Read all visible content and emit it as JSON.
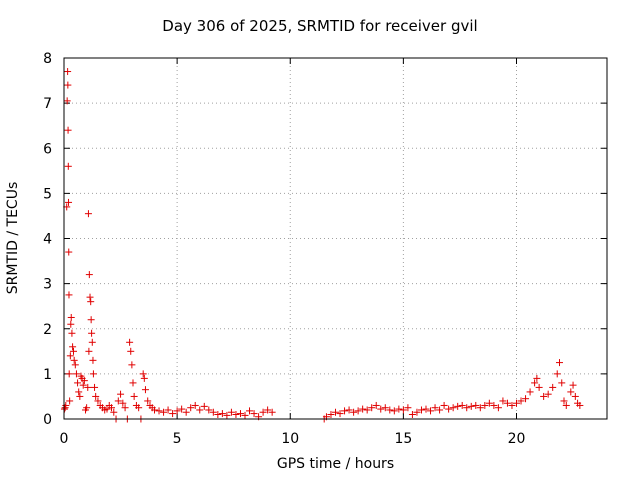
{
  "chart_data": {
    "type": "scatter",
    "title": "Day 306 of 2025, SRMTID for receiver gvil",
    "xlabel": "GPS time / hours",
    "ylabel": "SRMTID / TECUs",
    "xlim": [
      0,
      24
    ],
    "ylim": [
      0,
      8
    ],
    "x_ticks": [
      0,
      5,
      10,
      15,
      20
    ],
    "y_ticks": [
      0,
      1,
      2,
      3,
      4,
      5,
      6,
      7,
      8
    ],
    "grid": true,
    "legend": "none",
    "marker": "+",
    "color": "#e00000",
    "series": [
      {
        "points": [
          [
            0.02,
            0.22
          ],
          [
            0.05,
            0.25
          ],
          [
            0.08,
            0.3
          ],
          [
            0.12,
            4.7
          ],
          [
            0.14,
            7.05
          ],
          [
            0.16,
            7.7
          ],
          [
            0.17,
            7.4
          ],
          [
            0.18,
            6.4
          ],
          [
            0.19,
            5.6
          ],
          [
            0.2,
            4.8
          ],
          [
            0.21,
            3.7
          ],
          [
            0.22,
            2.75
          ],
          [
            0.23,
            1.0
          ],
          [
            0.25,
            0.4
          ],
          [
            0.28,
            1.4
          ],
          [
            0.3,
            2.1
          ],
          [
            0.32,
            2.25
          ],
          [
            0.35,
            1.9
          ],
          [
            0.38,
            1.6
          ],
          [
            0.42,
            1.5
          ],
          [
            0.45,
            1.3
          ],
          [
            0.5,
            1.2
          ],
          [
            0.55,
            1.0
          ],
          [
            0.6,
            0.8
          ],
          [
            0.65,
            0.6
          ],
          [
            0.7,
            0.5
          ],
          [
            0.75,
            0.95
          ],
          [
            0.8,
            0.9
          ],
          [
            0.85,
            0.75
          ],
          [
            0.9,
            0.85
          ],
          [
            0.95,
            0.2
          ],
          [
            1.0,
            0.25
          ],
          [
            1.05,
            0.7
          ],
          [
            1.08,
            4.55
          ],
          [
            1.1,
            1.5
          ],
          [
            1.12,
            3.2
          ],
          [
            1.15,
            2.7
          ],
          [
            1.18,
            2.6
          ],
          [
            1.2,
            2.2
          ],
          [
            1.22,
            1.9
          ],
          [
            1.25,
            1.7
          ],
          [
            1.28,
            1.3
          ],
          [
            1.3,
            1.0
          ],
          [
            1.35,
            0.7
          ],
          [
            1.4,
            0.5
          ],
          [
            1.5,
            0.4
          ],
          [
            1.6,
            0.3
          ],
          [
            1.7,
            0.25
          ],
          [
            1.8,
            0.2
          ],
          [
            1.9,
            0.22
          ],
          [
            2.0,
            0.3
          ],
          [
            2.1,
            0.25
          ],
          [
            2.2,
            0.15
          ],
          [
            2.3,
            0.0
          ],
          [
            2.4,
            0.4
          ],
          [
            2.5,
            0.55
          ],
          [
            2.6,
            0.35
          ],
          [
            2.7,
            0.25
          ],
          [
            2.8,
            0.0
          ],
          [
            2.9,
            1.7
          ],
          [
            2.95,
            1.5
          ],
          [
            3.0,
            1.2
          ],
          [
            3.05,
            0.8
          ],
          [
            3.1,
            0.5
          ],
          [
            3.2,
            0.3
          ],
          [
            3.3,
            0.25
          ],
          [
            3.4,
            0.0
          ],
          [
            3.5,
            1.0
          ],
          [
            3.55,
            0.9
          ],
          [
            3.6,
            0.65
          ],
          [
            3.7,
            0.4
          ],
          [
            3.8,
            0.3
          ],
          [
            3.9,
            0.25
          ],
          [
            4.0,
            0.2
          ],
          [
            4.2,
            0.18
          ],
          [
            4.4,
            0.15
          ],
          [
            4.6,
            0.2
          ],
          [
            4.8,
            0.12
          ],
          [
            5.0,
            0.18
          ],
          [
            5.2,
            0.22
          ],
          [
            5.4,
            0.15
          ],
          [
            5.6,
            0.25
          ],
          [
            5.8,
            0.3
          ],
          [
            6.0,
            0.2
          ],
          [
            6.2,
            0.28
          ],
          [
            6.4,
            0.2
          ],
          [
            6.6,
            0.15
          ],
          [
            6.8,
            0.1
          ],
          [
            7.0,
            0.12
          ],
          [
            7.2,
            0.08
          ],
          [
            7.4,
            0.15
          ],
          [
            7.6,
            0.1
          ],
          [
            7.8,
            0.12
          ],
          [
            8.0,
            0.08
          ],
          [
            8.2,
            0.18
          ],
          [
            8.4,
            0.12
          ],
          [
            8.6,
            0.05
          ],
          [
            8.8,
            0.15
          ],
          [
            9.0,
            0.2
          ],
          [
            9.2,
            0.15
          ],
          [
            11.5,
            0.0
          ],
          [
            11.6,
            0.05
          ],
          [
            11.8,
            0.1
          ],
          [
            12.0,
            0.15
          ],
          [
            12.2,
            0.12
          ],
          [
            12.4,
            0.18
          ],
          [
            12.6,
            0.2
          ],
          [
            12.8,
            0.15
          ],
          [
            13.0,
            0.18
          ],
          [
            13.2,
            0.22
          ],
          [
            13.4,
            0.2
          ],
          [
            13.6,
            0.25
          ],
          [
            13.8,
            0.3
          ],
          [
            14.0,
            0.22
          ],
          [
            14.2,
            0.25
          ],
          [
            14.4,
            0.2
          ],
          [
            14.6,
            0.18
          ],
          [
            14.8,
            0.22
          ],
          [
            15.0,
            0.2
          ],
          [
            15.2,
            0.25
          ],
          [
            15.4,
            0.1
          ],
          [
            15.6,
            0.15
          ],
          [
            15.8,
            0.2
          ],
          [
            16.0,
            0.22
          ],
          [
            16.2,
            0.18
          ],
          [
            16.4,
            0.25
          ],
          [
            16.6,
            0.2
          ],
          [
            16.8,
            0.3
          ],
          [
            17.0,
            0.22
          ],
          [
            17.2,
            0.25
          ],
          [
            17.4,
            0.28
          ],
          [
            17.6,
            0.3
          ],
          [
            17.8,
            0.25
          ],
          [
            18.0,
            0.28
          ],
          [
            18.2,
            0.3
          ],
          [
            18.4,
            0.25
          ],
          [
            18.6,
            0.3
          ],
          [
            18.8,
            0.35
          ],
          [
            19.0,
            0.3
          ],
          [
            19.2,
            0.25
          ],
          [
            19.4,
            0.4
          ],
          [
            19.6,
            0.35
          ],
          [
            19.8,
            0.3
          ],
          [
            20.0,
            0.35
          ],
          [
            20.2,
            0.4
          ],
          [
            20.4,
            0.45
          ],
          [
            20.6,
            0.6
          ],
          [
            20.8,
            0.8
          ],
          [
            20.9,
            0.9
          ],
          [
            21.0,
            0.7
          ],
          [
            21.2,
            0.5
          ],
          [
            21.4,
            0.55
          ],
          [
            21.6,
            0.7
          ],
          [
            21.8,
            1.0
          ],
          [
            21.9,
            1.25
          ],
          [
            22.0,
            0.8
          ],
          [
            22.1,
            0.4
          ],
          [
            22.2,
            0.3
          ],
          [
            22.4,
            0.6
          ],
          [
            22.5,
            0.75
          ],
          [
            22.6,
            0.5
          ],
          [
            22.7,
            0.35
          ],
          [
            22.8,
            0.3
          ]
        ]
      }
    ]
  }
}
